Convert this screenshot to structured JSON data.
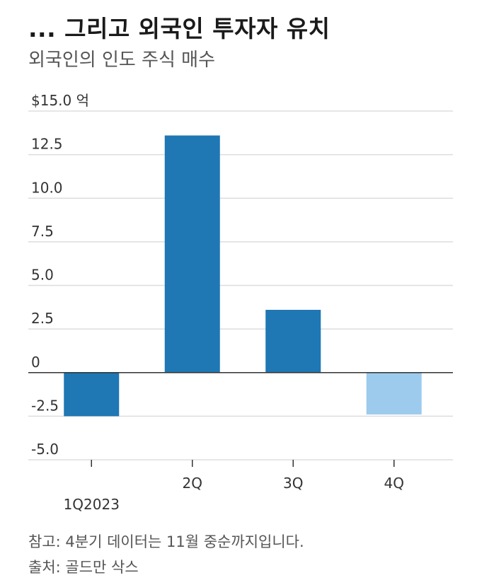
{
  "header": {
    "title": "... 그리고 외국인 투자자 유치",
    "subtitle": "외국인의 인도 주식 매수"
  },
  "footer": {
    "note": "참고: 4분기 데이터는 11월 중순까지입니다.",
    "source": "출처: 골드만 삭스"
  },
  "chart_data": {
    "type": "bar",
    "title": "... 그리고 외국인 투자자 유치",
    "subtitle": "외국인의 인도 주식 매수",
    "categories": [
      "1Q2023",
      "2Q",
      "3Q",
      "4Q"
    ],
    "values": [
      -2.5,
      13.6,
      3.6,
      -2.4
    ],
    "ylim": [
      -5.0,
      15.0
    ],
    "yticks": [
      15.0,
      12.5,
      10.0,
      7.5,
      5.0,
      2.5,
      0,
      -2.5,
      -5.0
    ],
    "ytick_labels": [
      "$15.0 억",
      "12.5",
      "10.0",
      "7.5",
      "5.0",
      "2.5",
      "0",
      "-2.5",
      "-5.0"
    ],
    "grid": true,
    "colors": {
      "bar": "#1f77b4",
      "bar_partial": "#9ccbee",
      "grid": "#dddddd",
      "zero_line": "#333333"
    },
    "partial_categories": [
      "4Q"
    ]
  }
}
